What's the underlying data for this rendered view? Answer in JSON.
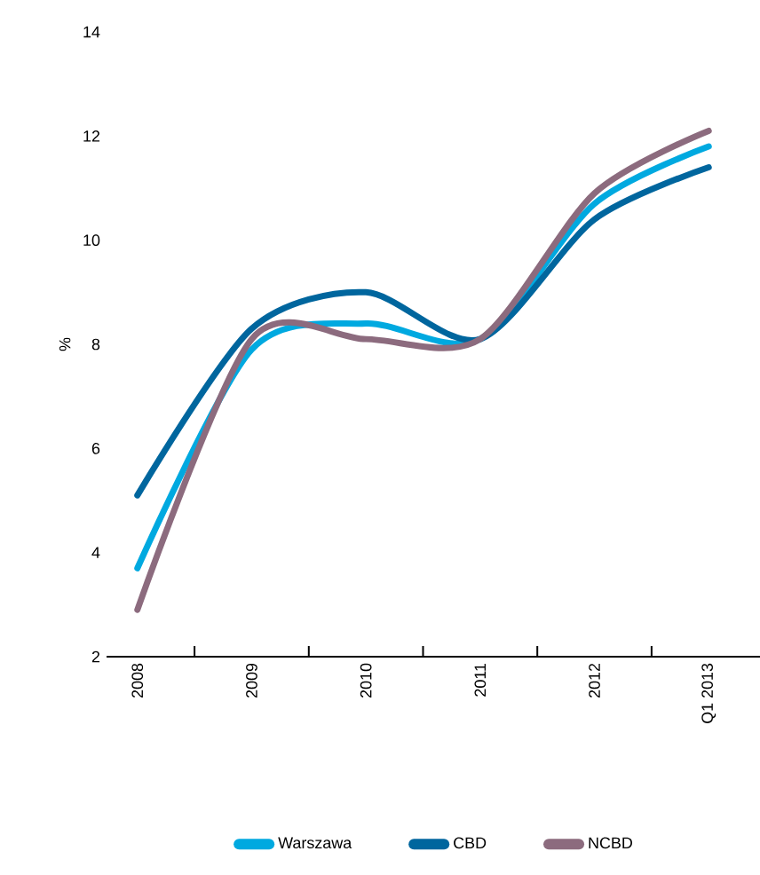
{
  "chart_data": {
    "type": "line",
    "ylabel": "%",
    "categories": [
      "2008",
      "2009",
      "2010",
      "2011",
      "2012",
      "Q1 2013"
    ],
    "series": [
      {
        "name": "Warszawa",
        "color": "#00a9e0",
        "values": [
          3.7,
          7.9,
          8.4,
          8.1,
          10.7,
          11.8
        ]
      },
      {
        "name": "CBD",
        "color": "#00669e",
        "values": [
          5.1,
          8.3,
          9.0,
          8.1,
          10.4,
          11.4
        ]
      },
      {
        "name": "NCBD",
        "color": "#8c6b7e",
        "values": [
          2.9,
          8.1,
          8.1,
          8.1,
          10.9,
          12.1
        ]
      }
    ],
    "ylim": [
      2,
      14
    ],
    "yticks": [
      2,
      4,
      6,
      8,
      10,
      12,
      14
    ],
    "legend": "bottom",
    "grid": false,
    "marker": "none",
    "line_style": "solid"
  }
}
